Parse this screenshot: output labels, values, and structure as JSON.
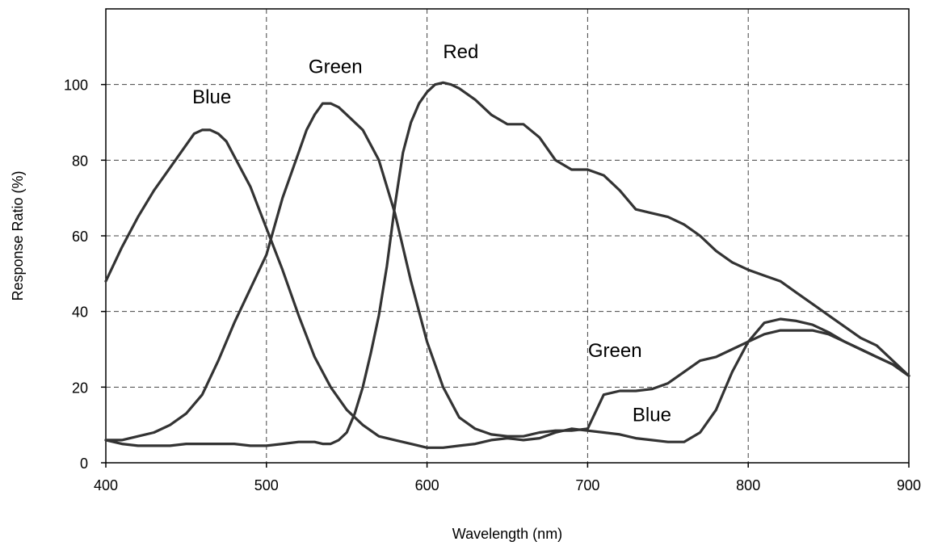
{
  "chart_data": {
    "type": "line",
    "xlabel": "Wavelength (nm)",
    "ylabel": "Response Ratio (%)",
    "xlim": [
      400,
      900
    ],
    "ylim": [
      0,
      120
    ],
    "x_ticks": [
      400,
      500,
      600,
      700,
      800,
      900
    ],
    "y_ticks": [
      0,
      20,
      40,
      60,
      80,
      100
    ],
    "grid": true,
    "line_color": "#333333",
    "series": [
      {
        "name": "Blue",
        "x": [
          400,
          410,
          420,
          430,
          440,
          450,
          455,
          460,
          465,
          470,
          475,
          480,
          490,
          500,
          510,
          520,
          530,
          540,
          550,
          560,
          570,
          580,
          590,
          600,
          610,
          620,
          630,
          640,
          650,
          660,
          670,
          680,
          690,
          700,
          710,
          720,
          730,
          740,
          750,
          760,
          770,
          780,
          790,
          800,
          810,
          820,
          830,
          840,
          850,
          860,
          870,
          880,
          890,
          900
        ],
        "y": [
          48,
          57,
          65,
          72,
          78,
          84,
          87,
          88,
          88,
          87,
          85,
          81,
          73,
          62,
          51,
          39,
          28,
          20,
          14,
          10,
          7,
          6,
          5,
          4,
          4,
          4.5,
          5,
          6,
          6.5,
          6,
          6.5,
          8,
          9,
          8.5,
          8,
          7.5,
          6.5,
          6,
          5.5,
          5.5,
          8,
          14,
          24,
          32,
          37,
          38,
          37.5,
          36.5,
          34.5,
          32,
          30,
          28,
          26,
          23
        ]
      },
      {
        "name": "Green",
        "x": [
          400,
          410,
          420,
          430,
          440,
          450,
          460,
          470,
          480,
          490,
          500,
          510,
          520,
          525,
          530,
          535,
          540,
          545,
          550,
          560,
          570,
          580,
          590,
          600,
          610,
          620,
          630,
          640,
          650,
          660,
          670,
          680,
          690,
          700,
          710,
          720,
          730,
          740,
          750,
          760,
          770,
          780,
          790,
          800,
          810,
          820,
          830,
          840,
          850,
          860,
          870,
          880,
          890,
          900
        ],
        "y": [
          6,
          6,
          7,
          8,
          10,
          13,
          18,
          27,
          37,
          46,
          55,
          70,
          82,
          88,
          92,
          95,
          95,
          94,
          92,
          88,
          80,
          66,
          48,
          32,
          20,
          12,
          9,
          7.5,
          7,
          7,
          8,
          8.5,
          8.5,
          9,
          18,
          19,
          19,
          19.5,
          21,
          24,
          27,
          28,
          30,
          32,
          34,
          35,
          35,
          35,
          34,
          32,
          30,
          28,
          26,
          23
        ]
      },
      {
        "name": "Red",
        "x": [
          400,
          410,
          420,
          430,
          440,
          450,
          460,
          470,
          480,
          490,
          500,
          510,
          520,
          530,
          535,
          540,
          545,
          550,
          555,
          560,
          565,
          570,
          575,
          580,
          585,
          590,
          595,
          600,
          605,
          610,
          615,
          620,
          630,
          640,
          650,
          660,
          670,
          680,
          690,
          700,
          710,
          720,
          730,
          740,
          750,
          760,
          770,
          780,
          790,
          800,
          810,
          820,
          830,
          840,
          850,
          860,
          870,
          880,
          890,
          900
        ],
        "y": [
          6,
          5,
          4.5,
          4.5,
          4.5,
          5,
          5,
          5,
          5,
          4.5,
          4.5,
          5,
          5.5,
          5.5,
          5,
          5,
          6,
          8,
          13,
          20,
          29,
          39,
          52,
          68,
          82,
          90,
          95,
          98,
          100,
          100.5,
          100,
          99,
          96,
          92,
          89.5,
          89.5,
          86,
          80,
          77.5,
          77.5,
          76,
          72,
          67,
          66,
          65,
          63,
          60,
          56,
          53,
          51,
          49.5,
          48,
          45,
          42,
          39,
          36,
          33,
          31,
          27,
          23
        ]
      }
    ],
    "annotations": [
      {
        "text": "Blue",
        "x": 466,
        "y": 95
      },
      {
        "text": "Green",
        "x": 543,
        "y": 103
      },
      {
        "text": "Red",
        "x": 621,
        "y": 107
      },
      {
        "text": "Green",
        "x": 717,
        "y": 28
      },
      {
        "text": "Blue",
        "x": 740,
        "y": 11
      }
    ]
  }
}
